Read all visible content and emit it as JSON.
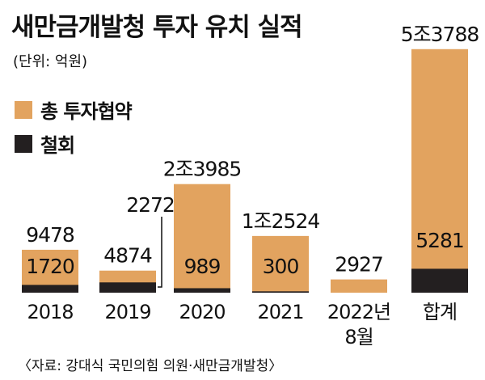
{
  "title": "새만금개발청 투자 유치 실적",
  "unit_note": "(단위: 억원)",
  "source": "〈자료: 강대식 국민의힘 의원·새만금개발청〉",
  "colors": {
    "total": "#e2a35f",
    "withdrawal": "#231f20"
  },
  "chart_data": {
    "type": "bar",
    "categories": [
      "2018",
      "2019",
      "2020",
      "2021",
      "2022년\n8월",
      "합계"
    ],
    "series": [
      {
        "name": "총 투자협약",
        "values": [
          9478,
          4874,
          23985,
          12524,
          2927,
          53788
        ],
        "labels": [
          "9478",
          "4874",
          "2조3985",
          "1조2524",
          "2927",
          "5조3788"
        ]
      },
      {
        "name": "철회",
        "values": [
          1720,
          2272,
          989,
          300,
          0,
          5281
        ],
        "labels": [
          "1720",
          "2272",
          "989",
          "300",
          "",
          "5281"
        ]
      }
    ],
    "ylim": [
      0,
      55000
    ],
    "legend": "top-left",
    "grid": false
  }
}
